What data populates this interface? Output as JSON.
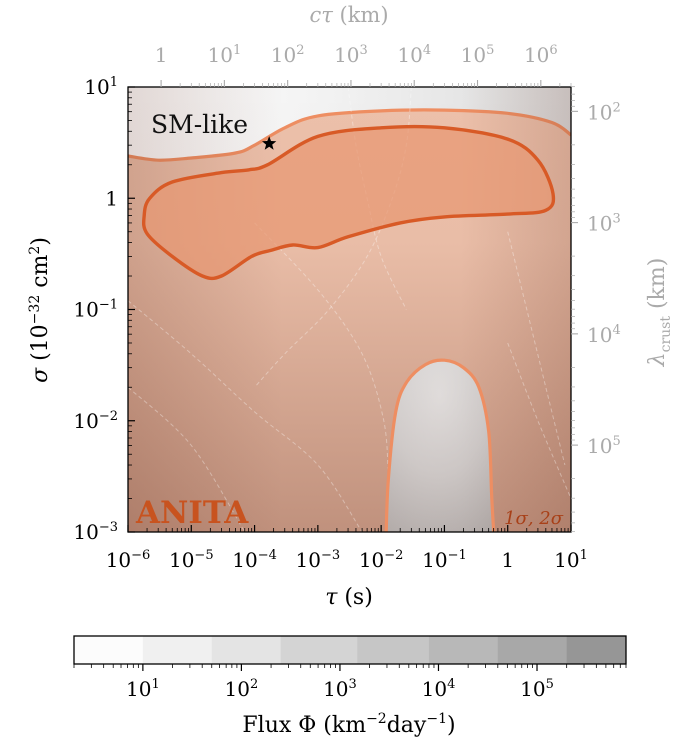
{
  "chart_data": {
    "type": "contour",
    "x_axis": {
      "label": "τ (s)",
      "scale": "log",
      "lim": [
        1e-06,
        10
      ],
      "ticks": [
        {
          "value": 1e-06,
          "base": "10",
          "exp": "−6"
        },
        {
          "value": 1e-05,
          "base": "10",
          "exp": "−5"
        },
        {
          "value": 0.0001,
          "base": "10",
          "exp": "−4"
        },
        {
          "value": 0.001,
          "base": "10",
          "exp": "−3"
        },
        {
          "value": 0.01,
          "base": "10",
          "exp": "−2"
        },
        {
          "value": 0.1,
          "base": "10",
          "exp": "−1"
        },
        {
          "value": 1,
          "base": "1",
          "exp": ""
        },
        {
          "value": 10,
          "base": "10",
          "exp": "1"
        }
      ]
    },
    "y_axis": {
      "label": "σ (10⁻³² cm²)",
      "scale": "log",
      "lim": [
        0.001,
        10
      ],
      "ticks": [
        {
          "value": 0.001,
          "base": "10",
          "exp": "−3"
        },
        {
          "value": 0.01,
          "base": "10",
          "exp": "−2"
        },
        {
          "value": 0.1,
          "base": "10",
          "exp": "−1"
        },
        {
          "value": 1,
          "base": "1",
          "exp": ""
        },
        {
          "value": 10,
          "base": "10",
          "exp": "1"
        }
      ]
    },
    "top_axis": {
      "label": "cτ (km)",
      "scale": "log",
      "ticks": [
        {
          "value": 1,
          "base": "1",
          "exp": ""
        },
        {
          "value": 10,
          "base": "10",
          "exp": "1"
        },
        {
          "value": 100,
          "base": "10",
          "exp": "2"
        },
        {
          "value": 1000,
          "base": "10",
          "exp": "3"
        },
        {
          "value": 10000,
          "base": "10",
          "exp": "4"
        },
        {
          "value": 100000,
          "base": "10",
          "exp": "5"
        },
        {
          "value": 1000000,
          "base": "10",
          "exp": "6"
        }
      ]
    },
    "right_axis": {
      "label": "λcrust (km)",
      "scale": "log",
      "inverted": true,
      "ticks": [
        {
          "value": 100,
          "base": "10",
          "exp": "2"
        },
        {
          "value": 1000,
          "base": "10",
          "exp": "3"
        },
        {
          "value": 10000,
          "base": "10",
          "exp": "4"
        },
        {
          "value": 100000,
          "base": "10",
          "exp": "5"
        }
      ]
    },
    "colorbar": {
      "label_main": "Flux Φ (km",
      "label_exp1": "−2",
      "label_mid": "day",
      "label_exp2": "−1",
      "label_close": ")",
      "scale": "log",
      "levels": [
        2,
        10,
        50,
        250,
        1500,
        8000,
        40000,
        200000,
        800000
      ],
      "colors": [
        "#fcfcfc",
        "#f0f0f0",
        "#e4e4e4",
        "#d4d4d4",
        "#c6c6c6",
        "#b8b8b8",
        "#a8a8a8",
        "#969696"
      ],
      "ticks": [
        {
          "value": 10,
          "base": "10",
          "exp": "1"
        },
        {
          "value": 100,
          "base": "10",
          "exp": "2"
        },
        {
          "value": 1000,
          "base": "10",
          "exp": "3"
        },
        {
          "value": 10000,
          "base": "10",
          "exp": "4"
        },
        {
          "value": 100000,
          "base": "10",
          "exp": "5"
        }
      ]
    },
    "region_1sigma": {
      "points": [
        [
          0.00016,
          2.0
        ],
        [
          0.001,
          3.6
        ],
        [
          0.01,
          4.3
        ],
        [
          0.1,
          4.3
        ],
        [
          1,
          3.4
        ],
        [
          3,
          2.2
        ],
        [
          5.2,
          1.1
        ],
        [
          4,
          0.78
        ],
        [
          1,
          0.72
        ],
        [
          0.1,
          0.68
        ],
        [
          0.02,
          0.6
        ],
        [
          0.003,
          0.45
        ],
        [
          0.001,
          0.36
        ],
        [
          0.0004,
          0.38
        ],
        [
          0.00018,
          0.34
        ],
        [
          9e-05,
          0.3
        ],
        [
          3e-05,
          0.2
        ],
        [
          1.5e-05,
          0.2
        ],
        [
          5e-06,
          0.3
        ],
        [
          2e-06,
          0.48
        ],
        [
          1.8e-06,
          0.7
        ],
        [
          2.2e-06,
          1.0
        ],
        [
          5e-06,
          1.4
        ],
        [
          3e-05,
          1.7
        ],
        [
          8e-05,
          1.8
        ]
      ],
      "fill": "#e89772",
      "stroke": "#d85a26"
    },
    "region_2sigma": {
      "upper": [
        [
          1e-06,
          2.4
        ],
        [
          3e-06,
          2.2
        ],
        [
          1e-05,
          2.3
        ],
        [
          5e-05,
          2.55
        ],
        [
          0.0001,
          3.0
        ],
        [
          0.0003,
          4.3
        ],
        [
          0.001,
          5.5
        ],
        [
          0.01,
          6.1
        ],
        [
          0.1,
          6.2
        ],
        [
          1,
          5.8
        ],
        [
          5,
          4.8
        ],
        [
          10,
          3.7
        ]
      ],
      "hole": [
        [
          0.012,
          0.001
        ],
        [
          0.013,
          0.003
        ],
        [
          0.017,
          0.012
        ],
        [
          0.025,
          0.022
        ],
        [
          0.05,
          0.032
        ],
        [
          0.1,
          0.035
        ],
        [
          0.2,
          0.03
        ],
        [
          0.35,
          0.02
        ],
        [
          0.5,
          0.008
        ],
        [
          0.56,
          0.002
        ],
        [
          0.6,
          0.001
        ]
      ],
      "fill": "#ecc0aa",
      "stroke": "#ee8e62"
    },
    "sm_like_point": {
      "x": 0.00017,
      "y": 3.1
    },
    "annotations": {
      "sm_label": "SM-like",
      "experiment": "ANITA",
      "sigma_levels": "1σ, 2σ"
    }
  }
}
